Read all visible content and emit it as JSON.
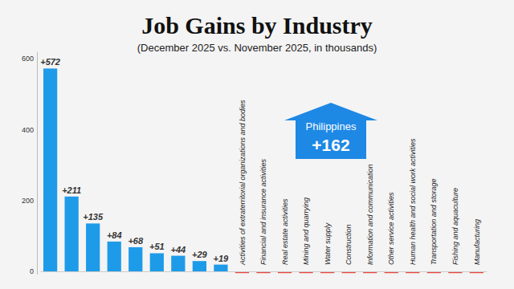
{
  "chart_data": {
    "type": "bar",
    "title": "Job Gains by Industry",
    "subtitle": "(December 2025 vs. November 2025, in thousands)",
    "categories": [
      null,
      null,
      null,
      null,
      null,
      null,
      null,
      null,
      null,
      "Activities of extraterritorial organizations and bodies",
      "Financial and insurance activities",
      "Real estate activities",
      "Mining and quarrying",
      "Water supply",
      "Construction",
      "Information and communication",
      "Other service activities",
      "Human health and social work activities",
      "Transportation and storage",
      "Fishing and aquaculture",
      "Manufacturing"
    ],
    "values": [
      572,
      211,
      135,
      84,
      68,
      51,
      44,
      29,
      19,
      -5,
      -5,
      -5,
      -5,
      -5,
      -5,
      -5,
      -5,
      -5,
      -5,
      -5,
      -5
    ],
    "value_labels": [
      "+572",
      "+211",
      "+135",
      "+84",
      "+68",
      "+51",
      "+44",
      "+29",
      "+19",
      null,
      null,
      null,
      null,
      null,
      null,
      null,
      null,
      null,
      null,
      null,
      null
    ],
    "colors": [
      "#1e9be8",
      "#1e9be8",
      "#1e9be8",
      "#1e9be8",
      "#1e9be8",
      "#1e9be8",
      "#1e9be8",
      "#1e9be8",
      "#1e9be8",
      "#e8453c",
      "#e8453c",
      "#e8453c",
      "#e8453c",
      "#e8453c",
      "#e8453c",
      "#e8453c",
      "#e8453c",
      "#e8453c",
      "#e8453c",
      "#e8453c",
      "#e8453c"
    ],
    "ylim": [
      -8,
      620
    ],
    "yticks": [
      0,
      200,
      400,
      600
    ],
    "grid": false,
    "data_labels": true,
    "annotations": [
      {
        "label": "Philippines",
        "value": 162,
        "value_label": "+162"
      }
    ]
  }
}
